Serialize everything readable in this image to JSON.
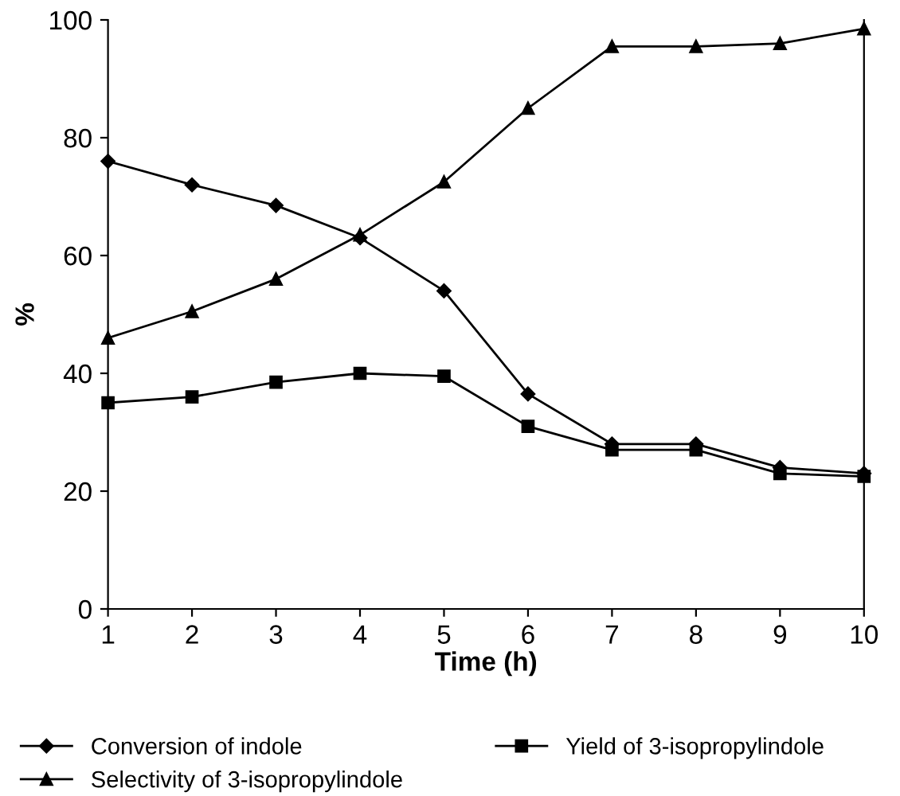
{
  "chart_data": {
    "type": "line",
    "xlabel": "Time (h)",
    "ylabel": "%",
    "x": [
      1,
      2,
      3,
      4,
      5,
      6,
      7,
      8,
      9,
      10
    ],
    "series": [
      {
        "name": "Conversion of indole",
        "color": "#000000",
        "marker": "diamond",
        "values": [
          76,
          72,
          68.5,
          63,
          54,
          36.5,
          28,
          28,
          24,
          23
        ]
      },
      {
        "name": "Yield of 3-isopropylindole",
        "color": "#000000",
        "marker": "square",
        "values": [
          35,
          36,
          38.5,
          40,
          39.5,
          31,
          27,
          27,
          23,
          22.5
        ]
      },
      {
        "name": "Selectivity of 3-isopropylindole",
        "color": "#000000",
        "marker": "triangle",
        "values": [
          46,
          50.5,
          56,
          63.5,
          72.5,
          85,
          95.5,
          95.5,
          96,
          98.5
        ]
      }
    ],
    "xlim": [
      1,
      10
    ],
    "xticks": [
      1,
      2,
      3,
      4,
      5,
      6,
      7,
      8,
      9,
      10
    ],
    "ylim": [
      0,
      100
    ],
    "yticks": [
      0,
      20,
      40,
      60,
      80,
      100
    ],
    "grid": false,
    "legend": "bottom",
    "line_style": "solid"
  }
}
